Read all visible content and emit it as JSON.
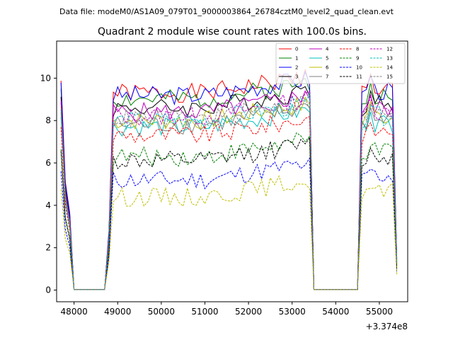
{
  "chart_data": {
    "type": "line",
    "suptitle": "Data file: modeM0/AS1A09_079T01_9000003864_26784cztM0_level2_quad_clean.evt",
    "title": "Quadrant 2 module wise count rates with 100.0s bins.",
    "xlabel": "",
    "ylabel": "",
    "x_offset_label": "+3.374e8",
    "xlim": [
      47600,
      55650
    ],
    "ylim": [
      -0.55,
      11.75
    ],
    "xticks": [
      48000,
      49000,
      50000,
      51000,
      52000,
      53000,
      54000,
      55000
    ],
    "xtick_labels": [
      "48000",
      "49000",
      "50000",
      "51000",
      "52000",
      "53000",
      "54000",
      "55000"
    ],
    "yticks": [
      0,
      2,
      4,
      6,
      8,
      10
    ],
    "ytick_labels": [
      "0",
      "2",
      "4",
      "6",
      "8",
      "10"
    ],
    "legend_placement": "top-right",
    "gaps": [
      [
        47900,
        48750
      ],
      [
        53450,
        54600
      ]
    ],
    "series": [
      {
        "name": "0",
        "color": "#ff0000",
        "dash": "solid",
        "base": 9.3,
        "peak": 10.4
      },
      {
        "name": "1",
        "color": "#008000",
        "dash": "solid",
        "base": 9.0,
        "peak": 10.0
      },
      {
        "name": "2",
        "color": "#0000ff",
        "dash": "solid",
        "base": 9.2,
        "peak": 10.3
      },
      {
        "name": "3",
        "color": "#000000",
        "dash": "solid",
        "base": 8.6,
        "peak": 9.6
      },
      {
        "name": "4",
        "color": "#bf00bf",
        "dash": "solid",
        "base": 8.4,
        "peak": 9.4
      },
      {
        "name": "5",
        "color": "#00bfbf",
        "dash": "solid",
        "base": 7.7,
        "peak": 8.6
      },
      {
        "name": "6",
        "color": "#bfbf00",
        "dash": "solid",
        "base": 8.0,
        "peak": 9.1
      },
      {
        "name": "7",
        "color": "#808080",
        "dash": "solid",
        "base": 7.8,
        "peak": 8.8
      },
      {
        "name": "8",
        "color": "#ff0000",
        "dash": "dashed",
        "base": 7.3,
        "peak": 8.1
      },
      {
        "name": "9",
        "color": "#008000",
        "dash": "dashed",
        "base": 6.3,
        "peak": 7.0
      },
      {
        "name": "10",
        "color": "#0000ff",
        "dash": "dashed",
        "base": 5.2,
        "peak": 5.9
      },
      {
        "name": "11",
        "color": "#000000",
        "dash": "dashed",
        "base": 6.1,
        "peak": 6.9
      },
      {
        "name": "12",
        "color": "#bf00bf",
        "dash": "dashed",
        "base": 8.2,
        "peak": 9.3
      },
      {
        "name": "13",
        "color": "#00bfbf",
        "dash": "dashed",
        "base": 8.0,
        "peak": 8.9
      },
      {
        "name": "14",
        "color": "#bfbf00",
        "dash": "dashed",
        "base": 4.4,
        "peak": 5.0
      },
      {
        "name": "15",
        "color": "#808080",
        "dash": "dashed",
        "base": 8.1,
        "peak": 9.0
      }
    ]
  }
}
